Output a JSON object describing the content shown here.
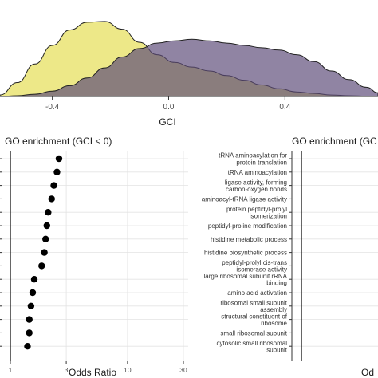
{
  "chart_data": [
    {
      "type": "area",
      "xlabel": "GCI",
      "xticks": [
        "-0.4",
        "0.0",
        "0.4"
      ],
      "xlim": [
        -0.58,
        0.72
      ],
      "series": [
        {
          "color": "#ece67e",
          "x": [
            -0.58,
            -0.52,
            -0.46,
            -0.4,
            -0.34,
            -0.28,
            -0.22,
            -0.16,
            -0.1,
            -0.04,
            0.02,
            0.08,
            0.14,
            0.2,
            0.26,
            0.32,
            0.38,
            0.44,
            0.5,
            0.56,
            0.62,
            0.68,
            0.72
          ],
          "density": [
            0.02,
            0.18,
            0.42,
            0.66,
            0.86,
            0.96,
            0.97,
            0.87,
            0.7,
            0.54,
            0.44,
            0.38,
            0.33,
            0.27,
            0.21,
            0.15,
            0.1,
            0.06,
            0.04,
            0.02,
            0.01,
            0.005,
            0.0
          ]
        },
        {
          "color": "#8b779b",
          "x": [
            -0.58,
            -0.52,
            -0.46,
            -0.4,
            -0.34,
            -0.28,
            -0.22,
            -0.16,
            -0.1,
            -0.04,
            0.02,
            0.08,
            0.14,
            0.2,
            0.26,
            0.32,
            0.38,
            0.44,
            0.5,
            0.56,
            0.62,
            0.68,
            0.72
          ],
          "density": [
            0.0,
            0.01,
            0.03,
            0.07,
            0.14,
            0.24,
            0.37,
            0.51,
            0.62,
            0.69,
            0.72,
            0.74,
            0.72,
            0.69,
            0.66,
            0.63,
            0.6,
            0.54,
            0.45,
            0.33,
            0.22,
            0.12,
            0.05
          ]
        }
      ]
    },
    {
      "type": "scatter",
      "title": "GO enrichment (GCI < 0)",
      "xlabel": "Odds Ratio",
      "xticks": [
        "1",
        "3",
        "10",
        "30"
      ],
      "x_scale": "log",
      "xlim": [
        0.8,
        40
      ],
      "reference_line_x": 1,
      "points": [
        2.6,
        2.5,
        2.35,
        2.25,
        2.1,
        2.05,
        2.0,
        1.95,
        1.85,
        1.6,
        1.55,
        1.5,
        1.45,
        1.45,
        1.4
      ]
    },
    {
      "type": "scatter",
      "title": "GO enrichment (GC",
      "xlabel": "Od",
      "terms": [
        "tRNA aminoacylation for protein translation",
        "tRNA aminoacylation",
        "ligase activity, forming carbon-oxygen bonds",
        "aminoacyl-tRNA ligase activity",
        "protein peptidyl-prolyl isomerization",
        "peptidyl-proline modification",
        "histidine metabolic process",
        "histidine biosynthetic process",
        "peptidyl-prolyl cis-trans isomerase activity",
        "large ribosomal subunit rRNA binding",
        "amino acid activation",
        "ribosomal small subunit assembly",
        "structural constituent of ribosome",
        "small ribosomal subunit",
        "cytosolic small ribosomal subunit"
      ],
      "term_lines": [
        [
          "tRNA aminoacylation for",
          "protein translation"
        ],
        [
          "tRNA aminoacylation"
        ],
        [
          "ligase activity, forming",
          "carbon-oxygen bonds"
        ],
        [
          "aminoacyl-tRNA ligase activity"
        ],
        [
          "protein peptidyl-prolyl",
          "isomerization"
        ],
        [
          "peptidyl-proline modification"
        ],
        [
          "histidine metabolic process"
        ],
        [
          "histidine biosynthetic process"
        ],
        [
          "peptidyl-prolyl cis-trans",
          "isomerase activity"
        ],
        [
          "large ribosomal subunit rRNA",
          "binding"
        ],
        [
          "amino acid activation"
        ],
        [
          "ribosomal small subunit",
          "assembly"
        ],
        [
          "structural constituent of",
          "ribosome"
        ],
        [
          "small ribosomal subunit"
        ],
        [
          "cytosolic small ribosomal",
          "subunit"
        ]
      ]
    }
  ]
}
